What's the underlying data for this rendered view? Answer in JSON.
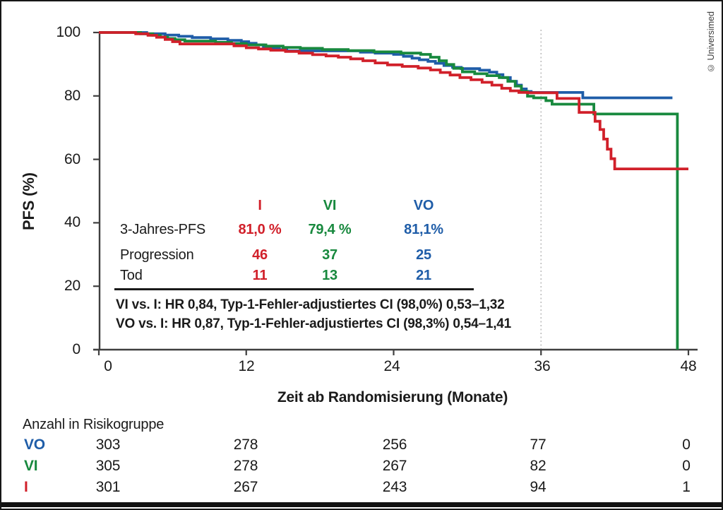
{
  "figure": {
    "copyright": "© Universimed"
  },
  "colors": {
    "red": "#d1202a",
    "green": "#18893e",
    "blue": "#1f5da8",
    "axis": "#3f3f3f",
    "dashed": "#b5b5b5",
    "text": "#1a1a1a"
  },
  "chart_data": {
    "type": "line",
    "subtype": "kaplan-meier-step",
    "title": "",
    "xlabel": "Zeit ab Randomisierung (Monate)",
    "ylabel": "PFS (%)",
    "xlim": [
      0,
      48
    ],
    "ylim": [
      0,
      100
    ],
    "x_ticks": [
      0,
      12,
      24,
      36,
      48
    ],
    "y_ticks": [
      100,
      80,
      60,
      40,
      20,
      0
    ],
    "reference_line_x": 36,
    "grid": false,
    "legend_position": "none",
    "series": [
      {
        "name": "VO",
        "color_key": "blue",
        "three_year_pfs_pct": 81.1,
        "points": [
          [
            0,
            100
          ],
          [
            3.9,
            99.6
          ],
          [
            5.4,
            99.2
          ],
          [
            6.5,
            98.8
          ],
          [
            7.6,
            98.4
          ],
          [
            9.1,
            98
          ],
          [
            10.5,
            97.5
          ],
          [
            11.6,
            97.1
          ],
          [
            12.2,
            96.6
          ],
          [
            12.8,
            96.1
          ],
          [
            13.4,
            95.6
          ],
          [
            14,
            95.1
          ],
          [
            14.7,
            94.6
          ],
          [
            15.3,
            94.2
          ],
          [
            21.3,
            93.8
          ],
          [
            22.5,
            93.5
          ],
          [
            24,
            93.1
          ],
          [
            24.8,
            92.5
          ],
          [
            25.5,
            91.9
          ],
          [
            26.1,
            91.4
          ],
          [
            26.8,
            90.9
          ],
          [
            27.4,
            90.3
          ],
          [
            28.1,
            89.6
          ],
          [
            28.8,
            89
          ],
          [
            29.5,
            88.6
          ],
          [
            31,
            88.1
          ],
          [
            31.8,
            87.5
          ],
          [
            32.4,
            86.7
          ],
          [
            32.9,
            85.8
          ],
          [
            33.5,
            84.6
          ],
          [
            34,
            83.4
          ],
          [
            34.4,
            82.2
          ],
          [
            34.8,
            81.4
          ],
          [
            35.2,
            81.1
          ],
          [
            39.4,
            79.4
          ],
          [
            46.7,
            79.4
          ]
        ]
      },
      {
        "name": "VI",
        "color_key": "green",
        "three_year_pfs_pct": 79.4,
        "points": [
          [
            0,
            100
          ],
          [
            3.4,
            99.6
          ],
          [
            4.4,
            99.1
          ],
          [
            5,
            98.6
          ],
          [
            5.6,
            98.1
          ],
          [
            6.2,
            97.7
          ],
          [
            7,
            97.3
          ],
          [
            9.5,
            96.9
          ],
          [
            10.8,
            96.5
          ],
          [
            12,
            96.1
          ],
          [
            13.6,
            95.7
          ],
          [
            15,
            95.3
          ],
          [
            16.4,
            95
          ],
          [
            18.2,
            94.6
          ],
          [
            20.3,
            94.3
          ],
          [
            22.4,
            93.9
          ],
          [
            24.6,
            93.5
          ],
          [
            26.2,
            93.1
          ],
          [
            27,
            92.2
          ],
          [
            27.7,
            91.1
          ],
          [
            28.3,
            89.9
          ],
          [
            28.9,
            88.7
          ],
          [
            29.6,
            87.6
          ],
          [
            30.6,
            87
          ],
          [
            31.6,
            86.4
          ],
          [
            32.6,
            85.8
          ],
          [
            33.3,
            84.6
          ],
          [
            33.9,
            83.1
          ],
          [
            34.4,
            81.4
          ],
          [
            34.9,
            79.9
          ],
          [
            35.4,
            79.4
          ],
          [
            36.4,
            78.5
          ],
          [
            36.9,
            77.4
          ],
          [
            40.3,
            74.3
          ],
          [
            47.1,
            0
          ]
        ]
      },
      {
        "name": "I",
        "color_key": "red",
        "three_year_pfs_pct": 81.0,
        "points": [
          [
            0,
            100
          ],
          [
            3,
            99.6
          ],
          [
            4,
            99.1
          ],
          [
            4.7,
            98.5
          ],
          [
            5.4,
            97.8
          ],
          [
            6,
            97.1
          ],
          [
            6.6,
            96.4
          ],
          [
            11,
            95.8
          ],
          [
            12,
            95.2
          ],
          [
            13,
            94.8
          ],
          [
            14,
            94.4
          ],
          [
            15.2,
            94
          ],
          [
            16.3,
            93.5
          ],
          [
            17.4,
            93
          ],
          [
            18.5,
            92.6
          ],
          [
            19.5,
            92.2
          ],
          [
            20.5,
            91.7
          ],
          [
            21.5,
            91.1
          ],
          [
            22.5,
            90.4
          ],
          [
            23.5,
            89.8
          ],
          [
            24.7,
            89.3
          ],
          [
            26,
            88.8
          ],
          [
            27,
            88.2
          ],
          [
            27.8,
            87.4
          ],
          [
            28.6,
            86.6
          ],
          [
            29.4,
            85.8
          ],
          [
            30.3,
            85.1
          ],
          [
            31.2,
            84.3
          ],
          [
            32,
            83.4
          ],
          [
            32.8,
            82.4
          ],
          [
            33.5,
            81.6
          ],
          [
            34.2,
            81.1
          ],
          [
            34.9,
            81
          ],
          [
            37.3,
            79.2
          ],
          [
            39.1,
            74.8
          ],
          [
            40.4,
            72
          ],
          [
            40.8,
            69.4
          ],
          [
            41.1,
            66.4
          ],
          [
            41.4,
            63.2
          ],
          [
            41.7,
            60.2
          ],
          [
            42,
            57
          ],
          [
            48,
            57
          ]
        ]
      }
    ]
  },
  "stats_table": {
    "columns": [
      {
        "label": "I",
        "color_key": "red"
      },
      {
        "label": "VI",
        "color_key": "green"
      },
      {
        "label": "VO",
        "color_key": "blue"
      }
    ],
    "rows": [
      {
        "label": "3-Jahres-PFS",
        "values": [
          "81,0 %",
          "79,4 %",
          "81,1%"
        ]
      },
      {
        "label": "Progression",
        "values": [
          "46",
          "37",
          "25"
        ]
      },
      {
        "label": "Tod",
        "values": [
          "11",
          "13",
          "21"
        ]
      }
    ],
    "footnotes": [
      "VI vs. I: HR 0,84, Typ-1-Fehler-adjustiertes CI (98,0%) 0,53–1,32",
      "VO vs. I: HR 0,87, Typ-1-Fehler-adjustiertes CI (98,3%) 0,54–1,41"
    ]
  },
  "risk_table": {
    "title": "Anzahl in Risikogruppe",
    "time_points": [
      0,
      12,
      24,
      36,
      48
    ],
    "rows": [
      {
        "group": "VO",
        "color_key": "blue",
        "counts": [
          "303",
          "278",
          "256",
          "77",
          "0"
        ]
      },
      {
        "group": "VI",
        "color_key": "green",
        "counts": [
          "305",
          "278",
          "267",
          "82",
          "0"
        ]
      },
      {
        "group": "I",
        "color_key": "red",
        "counts": [
          "301",
          "267",
          "243",
          "94",
          "1"
        ]
      }
    ]
  }
}
